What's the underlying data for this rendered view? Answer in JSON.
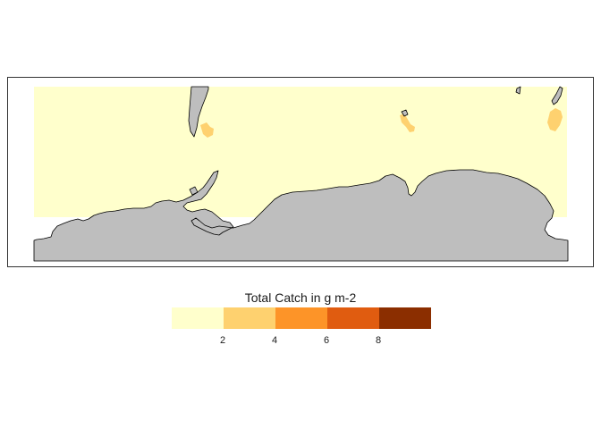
{
  "map": {
    "colors": {
      "land": "#bebebe",
      "coastline": "#000000",
      "ocean_background": "#ffffff"
    },
    "catch_classes": [
      {
        "range": "0-2",
        "color": "#ffffcc"
      },
      {
        "range": "2-4",
        "color": "#fed16f"
      },
      {
        "range": "4-6",
        "color": "#fd9428"
      },
      {
        "range": "6-8",
        "color": "#e05c10"
      },
      {
        "range": "8-10",
        "color": "#8b2e00"
      }
    ]
  },
  "legend": {
    "title": "Total Catch in g m-2",
    "tick_labels": [
      "2",
      "4",
      "6",
      "8"
    ]
  }
}
